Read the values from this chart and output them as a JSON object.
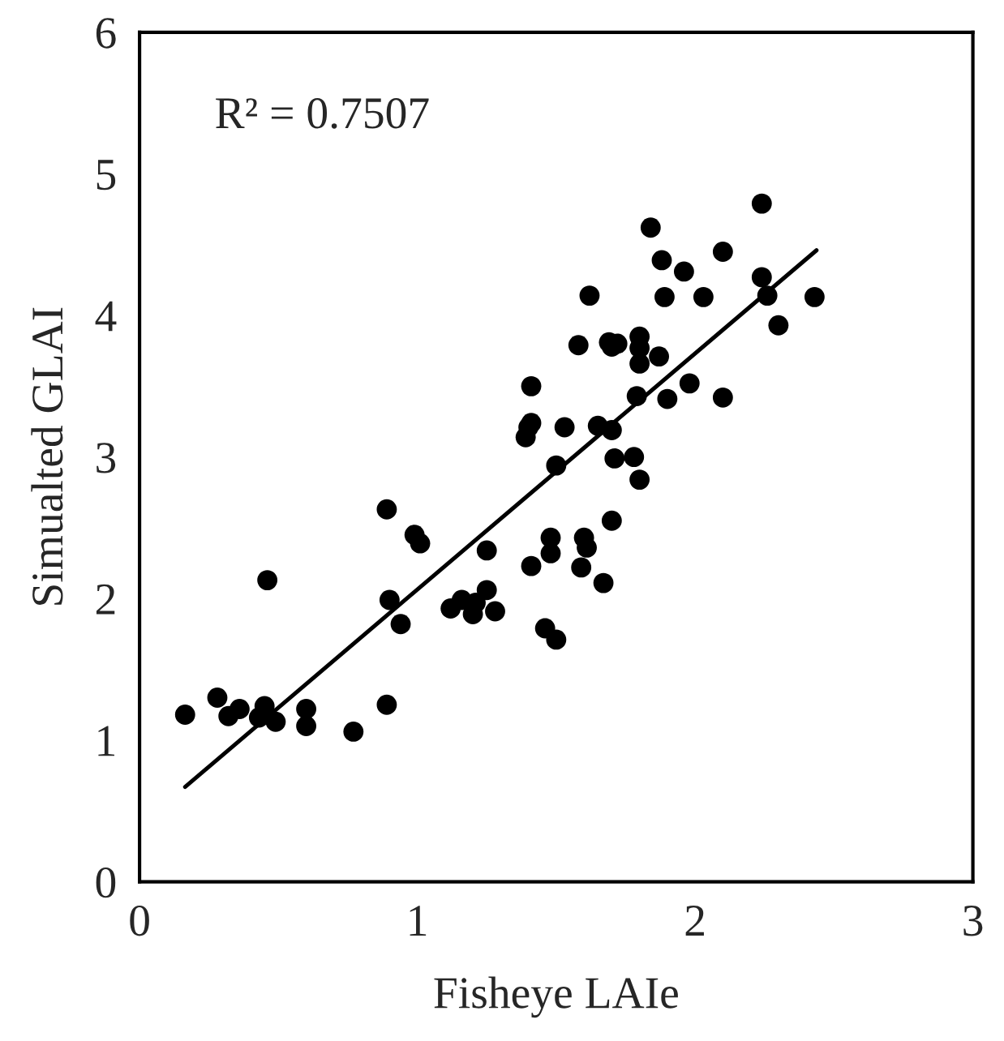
{
  "chart_data": {
    "type": "scatter",
    "xlabel": "Fisheye LAIe",
    "ylabel": "Simualted GLAI",
    "xlim": [
      0,
      3
    ],
    "xticks": [
      0,
      1,
      2,
      3
    ],
    "ylim": [
      0,
      6
    ],
    "yticks": [
      0,
      1,
      2,
      3,
      4,
      5,
      6
    ],
    "grid": false,
    "legend": false,
    "marker": "circle",
    "annotations": [
      "R² = 0.7507"
    ],
    "series": [
      {
        "color": "#000000",
        "x": [
          0.164,
          0.28,
          0.32,
          0.36,
          0.43,
          0.45,
          0.49,
          0.46,
          0.6,
          0.6,
          0.77,
          0.89,
          0.89,
          0.9,
          0.94,
          0.99,
          1.01,
          1.12,
          1.16,
          1.2,
          1.21,
          1.25,
          1.25,
          1.28,
          1.41,
          1.41,
          1.39,
          1.4,
          1.41,
          1.46,
          1.5,
          1.48,
          1.48,
          1.5,
          1.53,
          1.58,
          1.62,
          1.59,
          1.6,
          1.61,
          1.65,
          1.7,
          1.67,
          1.7,
          1.71,
          1.69,
          1.7,
          1.72,
          1.78,
          1.8,
          1.8,
          1.8,
          1.8,
          1.79,
          1.87,
          1.84,
          1.88,
          1.89,
          1.9,
          1.96,
          1.98,
          2.03,
          2.1,
          2.1,
          2.24,
          2.24,
          2.26,
          2.3,
          2.43
        ],
        "values": [
          1.18,
          1.3,
          1.17,
          1.22,
          1.16,
          1.24,
          1.13,
          2.13,
          1.22,
          1.1,
          1.06,
          1.25,
          2.63,
          1.99,
          1.82,
          2.45,
          2.39,
          1.93,
          1.99,
          1.89,
          1.97,
          2.06,
          2.34,
          1.91,
          3.5,
          2.23,
          3.14,
          3.21,
          3.24,
          1.79,
          1.71,
          2.32,
          2.43,
          2.94,
          3.21,
          3.79,
          4.14,
          2.22,
          2.43,
          2.36,
          3.22,
          3.19,
          2.11,
          2.55,
          2.99,
          3.81,
          3.78,
          3.8,
          3.0,
          2.84,
          3.85,
          3.77,
          3.66,
          3.43,
          3.71,
          4.62,
          4.39,
          4.13,
          3.41,
          4.31,
          3.52,
          4.13,
          4.45,
          3.42,
          4.79,
          4.27,
          4.14,
          3.93,
          4.13
        ]
      },
      {
        "type": "line",
        "color": "#000000",
        "line_style": "solid",
        "marker": "none",
        "x": [
          0.164,
          2.437
        ],
        "values": [
          0.67,
          4.46
        ]
      }
    ]
  }
}
